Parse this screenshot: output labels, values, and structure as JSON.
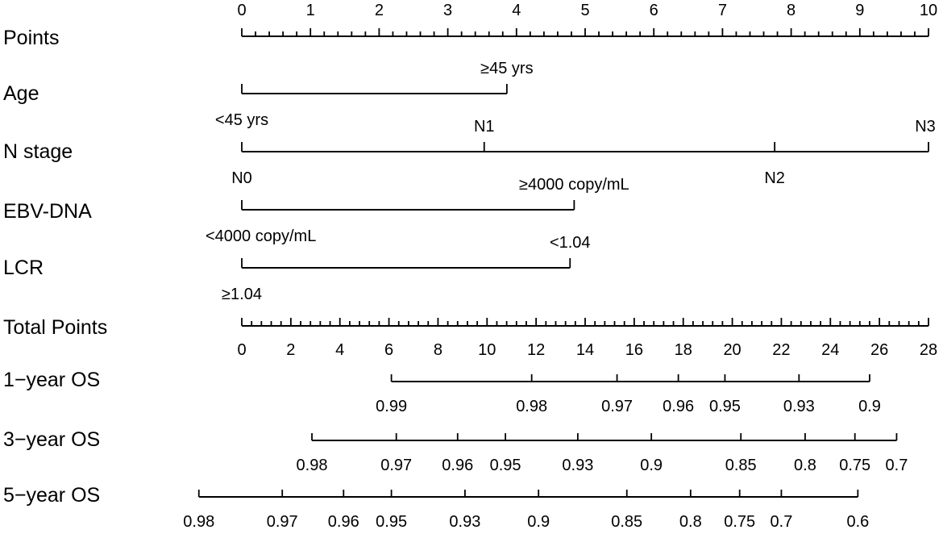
{
  "chart_data": {
    "type": "nomogram",
    "title": "",
    "axes": [
      {
        "name": "Points",
        "ticks": [
          {
            "value": 0,
            "label": "0"
          },
          {
            "value": 1,
            "label": "1"
          },
          {
            "value": 2,
            "label": "2"
          },
          {
            "value": 3,
            "label": "3"
          },
          {
            "value": 4,
            "label": "4"
          },
          {
            "value": 5,
            "label": "5"
          },
          {
            "value": 6,
            "label": "6"
          },
          {
            "value": 7,
            "label": "7"
          },
          {
            "value": 8,
            "label": "8"
          },
          {
            "value": 9,
            "label": "9"
          },
          {
            "value": 10,
            "label": "10"
          }
        ],
        "minor_step": 0.2,
        "range": [
          0,
          10
        ]
      },
      {
        "name": "Age",
        "levels": [
          {
            "label": "<45 yrs",
            "points": 0
          },
          {
            "label": "≥45 yrs",
            "points": 3.86
          }
        ]
      },
      {
        "name": "N stage",
        "levels": [
          {
            "label": "N0",
            "points": 0
          },
          {
            "label": "N1",
            "points": 3.53
          },
          {
            "label": "N2",
            "points": 7.76
          },
          {
            "label": "N3",
            "points": 10
          }
        ]
      },
      {
        "name": "EBV-DNA",
        "levels": [
          {
            "label": "<4000 copy/mL",
            "points": 0
          },
          {
            "label": "≥4000 copy/mL",
            "points": 4.84
          }
        ]
      },
      {
        "name": "LCR",
        "levels": [
          {
            "label": "≥1.04",
            "points": 0
          },
          {
            "label": "<1.04",
            "points": 4.78
          }
        ]
      },
      {
        "name": "Total Points",
        "ticks": [
          {
            "value": 0,
            "label": "0"
          },
          {
            "value": 2,
            "label": "2"
          },
          {
            "value": 4,
            "label": "4"
          },
          {
            "value": 6,
            "label": "6"
          },
          {
            "value": 8,
            "label": "8"
          },
          {
            "value": 10,
            "label": "10"
          },
          {
            "value": 12,
            "label": "12"
          },
          {
            "value": 14,
            "label": "14"
          },
          {
            "value": 16,
            "label": "16"
          },
          {
            "value": 18,
            "label": "18"
          },
          {
            "value": 20,
            "label": "20"
          },
          {
            "value": 22,
            "label": "22"
          },
          {
            "value": 24,
            "label": "24"
          },
          {
            "value": 26,
            "label": "26"
          },
          {
            "value": 28,
            "label": "28"
          }
        ],
        "minor_step": 0.4,
        "range": [
          0,
          28
        ]
      },
      {
        "name": "1−year OS",
        "probabilities": [
          {
            "label": "0.99",
            "total_points": 6.1
          },
          {
            "label": "0.98",
            "total_points": 11.82
          },
          {
            "label": "0.97",
            "total_points": 15.3
          },
          {
            "label": "0.96",
            "total_points": 17.8
          },
          {
            "label": "0.95",
            "total_points": 19.7
          },
          {
            "label": "0.93",
            "total_points": 22.72
          },
          {
            "label": "0.9",
            "total_points": 25.6
          }
        ]
      },
      {
        "name": "3−year OS",
        "probabilities": [
          {
            "label": "0.98",
            "total_points": 2.86
          },
          {
            "label": "0.97",
            "total_points": 6.3
          },
          {
            "label": "0.96",
            "total_points": 8.8
          },
          {
            "label": "0.95",
            "total_points": 10.75
          },
          {
            "label": "0.93",
            "total_points": 13.7
          },
          {
            "label": "0.9",
            "total_points": 16.7
          },
          {
            "label": "0.85",
            "total_points": 20.35
          },
          {
            "label": "0.8",
            "total_points": 22.97
          },
          {
            "label": "0.75",
            "total_points": 25.0
          },
          {
            "label": "0.7",
            "total_points": 26.7
          }
        ]
      },
      {
        "name": "5−year OS",
        "probabilities": [
          {
            "label": "0.98",
            "total_points": -1.75
          },
          {
            "label": "0.97",
            "total_points": 1.65
          },
          {
            "label": "0.96",
            "total_points": 4.15
          },
          {
            "label": "0.95",
            "total_points": 6.1
          },
          {
            "label": "0.93",
            "total_points": 9.1
          },
          {
            "label": "0.9",
            "total_points": 12.1
          },
          {
            "label": "0.85",
            "total_points": 15.7
          },
          {
            "label": "0.8",
            "total_points": 18.3
          },
          {
            "label": "0.75",
            "total_points": 20.3
          },
          {
            "label": "0.7",
            "total_points": 22.0
          },
          {
            "label": "0.6",
            "total_points": 25.12
          }
        ]
      }
    ]
  }
}
